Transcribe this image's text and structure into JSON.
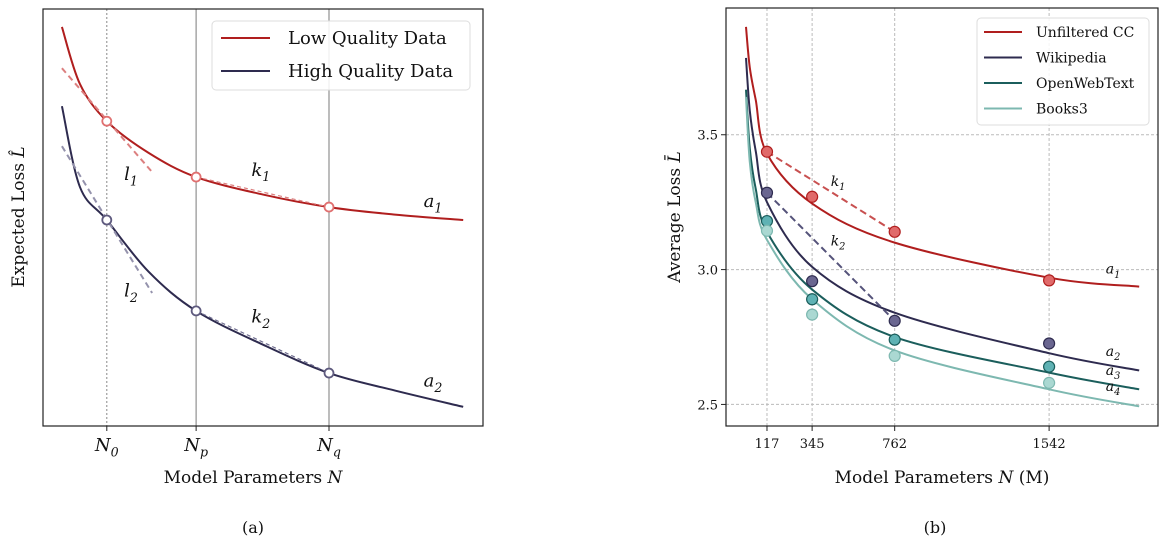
{
  "chart_data": [
    {
      "type": "line",
      "caption": "(a)",
      "xlabel": {
        "text": "Model Parameters",
        "var": "N"
      },
      "ylabel": {
        "text": "Expected Loss",
        "var": "L̂"
      },
      "xlim": [
        0,
        10
      ],
      "ylim": [
        0,
        10
      ],
      "x_ticks": [
        {
          "x": 1.45,
          "base": "N",
          "sub": "0"
        },
        {
          "x": 3.48,
          "base": "N",
          "sub": "p"
        },
        {
          "x": 6.5,
          "base": "N",
          "sub": "q"
        }
      ],
      "vlines": [
        {
          "x": 1.45,
          "style": "dotted"
        },
        {
          "x": 3.48,
          "style": "solid"
        },
        {
          "x": 6.5,
          "style": "solid"
        }
      ],
      "legend": {
        "placement": "top-right"
      },
      "series": [
        {
          "name": "Low Quality Data",
          "color": "#b01e1e",
          "curve": [
            [
              0.43,
              9.57
            ],
            [
              0.84,
              8.2
            ],
            [
              1.45,
              7.31
            ],
            [
              2.4,
              6.55
            ],
            [
              3.48,
              5.97
            ],
            [
              5.0,
              5.55
            ],
            [
              6.5,
              5.25
            ],
            [
              8.0,
              5.07
            ],
            [
              9.55,
              4.94
            ]
          ],
          "markers": [
            [
              1.45,
              7.31
            ],
            [
              3.48,
              5.97
            ],
            [
              6.5,
              5.25
            ]
          ],
          "marker_color": "#e07070",
          "tangent": {
            "label_base": "l",
            "label_sub": "1",
            "from": [
              0.43,
              8.58
            ],
            "to": [
              2.48,
              6.09
            ],
            "color": "#dc8080",
            "label_at": [
              2.0,
              5.9
            ]
          },
          "secant": {
            "label_base": "k",
            "label_sub": "1",
            "from": [
              3.48,
              5.97
            ],
            "to": [
              6.5,
              5.25
            ],
            "color": "#dc8080",
            "label_at": [
              4.95,
              6.0
            ]
          },
          "asymptote_label": {
            "base": "a",
            "sub": "1",
            "at": [
              9.0,
              5.25
            ],
            "color": "#dc8080"
          }
        },
        {
          "name": "High Quality Data",
          "color": "#2e2b4f",
          "curve": [
            [
              0.43,
              7.67
            ],
            [
              0.84,
              5.73
            ],
            [
              1.45,
              4.94
            ],
            [
              2.4,
              3.7
            ],
            [
              3.48,
              2.76
            ],
            [
              5.0,
              1.95
            ],
            [
              6.5,
              1.27
            ],
            [
              8.0,
              0.85
            ],
            [
              9.55,
              0.46
            ]
          ],
          "markers": [
            [
              1.45,
              4.94
            ],
            [
              3.48,
              2.76
            ],
            [
              6.5,
              1.27
            ]
          ],
          "marker_color": "#5e5a7e",
          "tangent": {
            "label_base": "l",
            "label_sub": "2",
            "from": [
              0.43,
              6.71
            ],
            "to": [
              2.48,
              3.19
            ],
            "color": "#9492ac",
            "label_at": [
              2.0,
              3.1
            ]
          },
          "secant": {
            "label_base": "k",
            "label_sub": "2",
            "from": [
              3.48,
              2.76
            ],
            "to": [
              6.5,
              1.27
            ],
            "color": "#6e6c8e",
            "label_at": [
              4.95,
              2.48
            ]
          },
          "asymptote_label": {
            "base": "a",
            "sub": "2",
            "at": [
              9.0,
              0.95
            ],
            "color": "#8a88a8"
          }
        }
      ]
    },
    {
      "type": "line",
      "caption": "(b)",
      "xlabel": {
        "text": "Model Parameters",
        "var": "N",
        "unit": "(M)"
      },
      "ylabel": {
        "text": "Average Loss",
        "var": "L̄"
      },
      "xlim": [
        -90,
        2092
      ],
      "ylim": [
        2.42,
        3.97
      ],
      "x_ticks": [
        117,
        345,
        762,
        1542
      ],
      "y_ticks": [
        "2.5",
        "3.0",
        "3.5"
      ],
      "grid": true,
      "legend": {
        "placement": "top-right"
      },
      "series": [
        {
          "name": "Unfiltered CC",
          "color": "#b01e1e",
          "marker_color": "#e06a6a",
          "curve": [
            [
              11,
              3.9
            ],
            [
              30,
              3.75
            ],
            [
              60,
              3.63
            ],
            [
              117,
              3.43
            ],
            [
              345,
              3.245
            ],
            [
              762,
              3.1
            ],
            [
              1542,
              2.97
            ],
            [
              1997,
              2.937
            ]
          ],
          "points": [
            [
              117,
              3.437
            ],
            [
              345,
              3.27
            ],
            [
              762,
              3.14
            ],
            [
              1542,
              2.96
            ]
          ],
          "curve_label": {
            "base": "a",
            "sub": "1",
            "at": [
              1865,
              2.985
            ]
          }
        },
        {
          "name": "Wikipedia",
          "color": "#2e2b4f",
          "marker_color": "#6a6690",
          "curve": [
            [
              11,
              3.785
            ],
            [
              30,
              3.59
            ],
            [
              60,
              3.44
            ],
            [
              117,
              3.25
            ],
            [
              345,
              3.01
            ],
            [
              762,
              2.84
            ],
            [
              1542,
              2.69
            ],
            [
              1997,
              2.626
            ]
          ],
          "points": [
            [
              117,
              3.285
            ],
            [
              345,
              2.957
            ],
            [
              762,
              2.81
            ],
            [
              1542,
              2.726
            ]
          ],
          "curve_label": {
            "base": "a",
            "sub": "2",
            "at": [
              1865,
              2.68
            ]
          }
        },
        {
          "name": "OpenWebText",
          "color": "#1b5e5c",
          "marker_color": "#5fb2b4",
          "curve": [
            [
              11,
              3.667
            ],
            [
              30,
              3.45
            ],
            [
              60,
              3.3
            ],
            [
              117,
              3.14
            ],
            [
              345,
              2.926
            ],
            [
              762,
              2.75
            ],
            [
              1542,
              2.618
            ],
            [
              1997,
              2.556
            ]
          ],
          "points": [
            [
              117,
              3.18
            ],
            [
              345,
              2.89
            ],
            [
              762,
              2.74
            ],
            [
              1542,
              2.64
            ]
          ],
          "curve_label": {
            "base": "a",
            "sub": "3",
            "at": [
              1865,
              2.61
            ]
          }
        },
        {
          "name": "Books3",
          "color": "#7db8b0",
          "marker_color": "#aad8d2",
          "curve": [
            [
              11,
              3.64
            ],
            [
              30,
              3.4
            ],
            [
              60,
              3.25
            ],
            [
              117,
              3.11
            ],
            [
              345,
              2.89
            ],
            [
              762,
              2.7
            ],
            [
              1542,
              2.556
            ],
            [
              1997,
              2.493
            ]
          ],
          "points": [
            [
              117,
              3.144
            ],
            [
              345,
              2.833
            ],
            [
              762,
              2.68
            ],
            [
              1542,
              2.58
            ]
          ],
          "curve_label": {
            "base": "a",
            "sub": "4",
            "at": [
              1865,
              2.55
            ]
          }
        }
      ],
      "annotations": [
        {
          "base": "k",
          "sub": "1",
          "from": [
            117,
            3.437
          ],
          "to": [
            762,
            3.14
          ],
          "color": "#c85050",
          "label_at": [
            476,
            3.31
          ]
        },
        {
          "base": "k",
          "sub": "2",
          "from": [
            117,
            3.285
          ],
          "to": [
            762,
            2.81
          ],
          "color": "#55537a",
          "label_at": [
            476,
            3.09
          ]
        }
      ]
    }
  ]
}
